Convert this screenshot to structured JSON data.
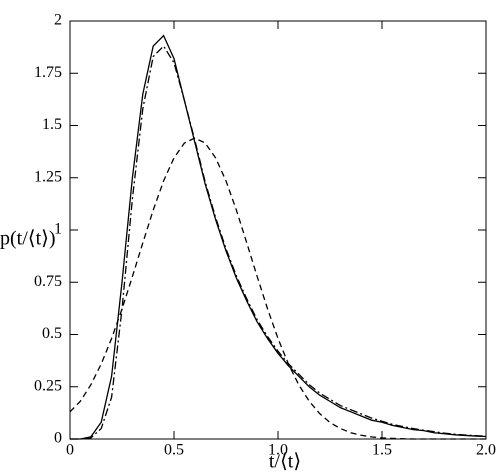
{
  "chart_data": {
    "type": "line",
    "x_label": "t/⟨t⟩",
    "y_label": "p(t/⟨t⟩)",
    "x": [
      0,
      0.05,
      0.1,
      0.15,
      0.2,
      0.25,
      0.3,
      0.35,
      0.4,
      0.45,
      0.5,
      0.55,
      0.6,
      0.65,
      0.7,
      0.75,
      0.8,
      0.85,
      0.9,
      0.95,
      1.0,
      1.05,
      1.1,
      1.15,
      1.2,
      1.25,
      1.3,
      1.35,
      1.4,
      1.45,
      1.5,
      1.55,
      1.6,
      1.65,
      1.7,
      1.75,
      1.8,
      1.85,
      1.9,
      1.95,
      2.0
    ],
    "series": [
      {
        "color": "#000000",
        "dash": "solid",
        "values": [
          0,
          0,
          0.01,
          0.08,
          0.3,
          0.75,
          1.25,
          1.65,
          1.88,
          1.93,
          1.82,
          1.62,
          1.42,
          1.22,
          1.05,
          0.9,
          0.77,
          0.66,
          0.56,
          0.48,
          0.41,
          0.35,
          0.3,
          0.25,
          0.21,
          0.18,
          0.15,
          0.13,
          0.11,
          0.09,
          0.08,
          0.065,
          0.055,
          0.045,
          0.04,
          0.03,
          0.025,
          0.02,
          0.017,
          0.014,
          0.012
        ]
      },
      {
        "color": "#000000",
        "dash": "dashdot",
        "values": [
          0,
          0,
          0.005,
          0.05,
          0.2,
          0.62,
          1.15,
          1.58,
          1.83,
          1.88,
          1.8,
          1.62,
          1.43,
          1.23,
          1.06,
          0.91,
          0.78,
          0.67,
          0.57,
          0.49,
          0.42,
          0.36,
          0.31,
          0.26,
          0.22,
          0.19,
          0.16,
          0.14,
          0.12,
          0.1,
          0.085,
          0.07,
          0.06,
          0.05,
          0.042,
          0.035,
          0.028,
          0.023,
          0.019,
          0.016,
          0.013
        ]
      },
      {
        "color": "#000000",
        "dash": "dashed",
        "values": [
          0.13,
          0.181,
          0.259,
          0.359,
          0.481,
          0.622,
          0.777,
          0.938,
          1.095,
          1.235,
          1.345,
          1.416,
          1.44,
          1.416,
          1.345,
          1.235,
          1.095,
          0.938,
          0.777,
          0.622,
          0.481,
          0.359,
          0.259,
          0.181,
          0.122,
          0.079,
          0.05,
          0.03,
          0.018,
          0.01,
          0.005,
          0.003,
          0.001,
          0,
          0,
          0,
          0,
          0,
          0,
          0,
          0
        ]
      }
    ],
    "xlim": [
      0,
      2
    ],
    "ylim": [
      0,
      2
    ],
    "xticks": [
      0,
      0.5,
      {
        "value": 1,
        "label": "1.0"
      },
      1.5,
      {
        "value": 2,
        "label": "2.0"
      }
    ],
    "yticks": [
      0,
      0.25,
      0.5,
      0.75,
      1,
      1.25,
      1.5,
      1.75,
      2
    ],
    "grid": false
  }
}
